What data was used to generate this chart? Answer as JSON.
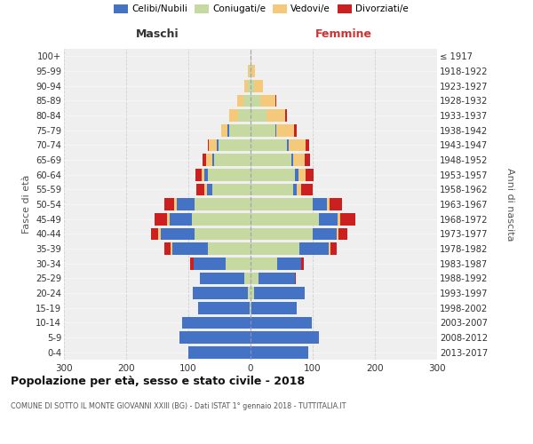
{
  "age_groups": [
    "0-4",
    "5-9",
    "10-14",
    "15-19",
    "20-24",
    "25-29",
    "30-34",
    "35-39",
    "40-44",
    "45-49",
    "50-54",
    "55-59",
    "60-64",
    "65-69",
    "70-74",
    "75-79",
    "80-84",
    "85-89",
    "90-94",
    "95-99",
    "100+"
  ],
  "birth_years": [
    "2013-2017",
    "2008-2012",
    "2003-2007",
    "1998-2002",
    "1993-1997",
    "1988-1992",
    "1983-1987",
    "1978-1982",
    "1973-1977",
    "1968-1972",
    "1963-1967",
    "1958-1962",
    "1953-1957",
    "1948-1952",
    "1943-1947",
    "1938-1942",
    "1933-1937",
    "1928-1932",
    "1923-1927",
    "1918-1922",
    "≤ 1917"
  ],
  "colors": {
    "celibi": "#4472c4",
    "coniugati": "#c5d9a0",
    "vedovi": "#f5c97a",
    "divorziati": "#cc2020"
  },
  "maschi": {
    "coniugati": [
      0,
      0,
      0,
      2,
      5,
      10,
      40,
      68,
      90,
      95,
      90,
      62,
      68,
      58,
      52,
      35,
      20,
      12,
      5,
      2,
      0
    ],
    "celibi": [
      100,
      115,
      110,
      83,
      88,
      72,
      52,
      58,
      55,
      35,
      28,
      8,
      6,
      4,
      3,
      2,
      0,
      0,
      0,
      0,
      0
    ],
    "vedovi": [
      0,
      0,
      0,
      0,
      0,
      0,
      0,
      2,
      3,
      5,
      5,
      5,
      5,
      10,
      12,
      10,
      15,
      10,
      5,
      2,
      0
    ],
    "divorziati": [
      0,
      0,
      0,
      0,
      0,
      0,
      5,
      10,
      12,
      20,
      15,
      12,
      10,
      5,
      2,
      0,
      0,
      0,
      0,
      0,
      0
    ]
  },
  "femmine": {
    "coniugati": [
      0,
      0,
      0,
      2,
      5,
      13,
      43,
      78,
      100,
      110,
      100,
      68,
      72,
      65,
      58,
      40,
      25,
      15,
      5,
      2,
      0
    ],
    "celibi": [
      93,
      110,
      98,
      72,
      82,
      58,
      38,
      48,
      38,
      30,
      23,
      6,
      5,
      4,
      3,
      2,
      0,
      0,
      0,
      0,
      0
    ],
    "vedovi": [
      0,
      0,
      0,
      0,
      0,
      0,
      0,
      2,
      3,
      4,
      4,
      8,
      12,
      18,
      28,
      28,
      30,
      25,
      15,
      5,
      2
    ],
    "divorziati": [
      0,
      0,
      0,
      0,
      0,
      2,
      5,
      10,
      15,
      25,
      20,
      18,
      12,
      8,
      5,
      4,
      3,
      2,
      0,
      0,
      0
    ]
  },
  "title": "Popolazione per età, sesso e stato civile - 2018",
  "subtitle": "COMUNE DI SOTTO IL MONTE GIOVANNI XXIII (BG) - Dati ISTAT 1° gennaio 2018 - TUTTITALIA.IT",
  "xlabel_left": "Maschi",
  "xlabel_right": "Femmine",
  "ylabel_left": "Fasce di età",
  "ylabel_right": "Anni di nascita",
  "xlim": 300,
  "bg_color": "#efefef",
  "grid_color": "#cccccc"
}
